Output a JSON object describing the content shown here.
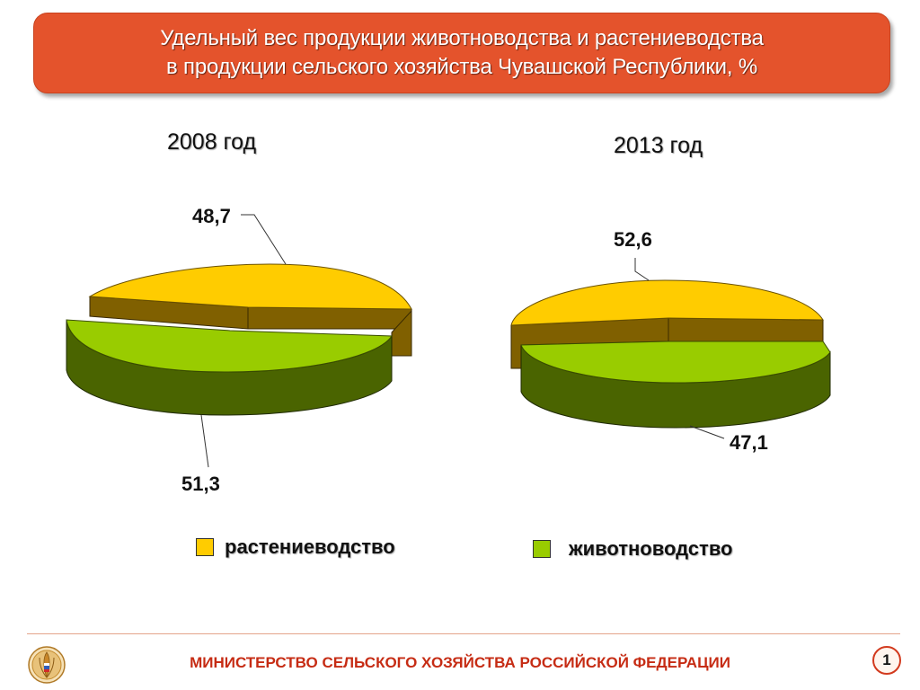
{
  "title": {
    "line1": "Удельный вес продукции животноводства и растениеводства",
    "line2": "в продукции сельского хозяйства Чувашской Республики, %"
  },
  "chart_data": [
    {
      "type": "pie",
      "title": "2008 год",
      "slices": [
        {
          "name": "растениеводство",
          "value": 48.7,
          "label": "48,7",
          "color": "#ffcc00"
        },
        {
          "name": "животноводство",
          "value": 51.3,
          "label": "51,3",
          "color": "#99cc00"
        }
      ]
    },
    {
      "type": "pie",
      "title": "2013 год",
      "slices": [
        {
          "name": "растениеводство",
          "value": 52.6,
          "label": "52,6",
          "color": "#ffcc00"
        },
        {
          "name": "животноводство",
          "value": 47.1,
          "label": "47,1",
          "color": "#99cc00"
        }
      ]
    }
  ],
  "legend": [
    {
      "label": "растениеводство",
      "color": "#ffcc00"
    },
    {
      "label": "животноводство",
      "color": "#99cc00"
    }
  ],
  "footer": {
    "ministry": "МИНИСТЕРСТВО СЕЛЬСКОГО ХОЗЯЙСТВА РОССИЙСКОЙ ФЕДЕРАЦИИ",
    "page_number": "1",
    "logo_icon": "wheat-emblem-icon"
  }
}
